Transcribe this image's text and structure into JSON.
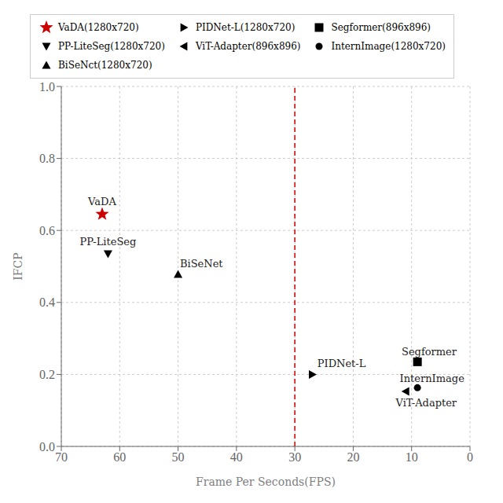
{
  "chart_data": {
    "type": "scatter",
    "title": "",
    "xlabel": "Frame Per Seconds(FPS)",
    "ylabel": "IFCP",
    "xlim": [
      70,
      0
    ],
    "ylim": [
      0.0,
      1.0
    ],
    "xticks": [
      70,
      60,
      50,
      40,
      30,
      20,
      10,
      0
    ],
    "yticks": [
      {
        "value": 0.0,
        "label": "0.0"
      },
      0.2,
      0.4,
      0.6,
      0.8,
      {
        "value": 1.0,
        "label": "1.0"
      }
    ],
    "grid": true,
    "legend": "top",
    "series": [
      {
        "name": "VaDA(1280x720)",
        "color": "#cc0000",
        "marker": "star",
        "x": [
          63
        ],
        "values": [
          0.645
        ]
      },
      {
        "name": "PIDNet-L(1280x720)",
        "color": "black",
        "marker": "triangle-right",
        "x": [
          27
        ],
        "values": [
          0.2
        ]
      },
      {
        "name": "Segformer(896x896)",
        "color": "black",
        "marker": "square",
        "x": [
          9
        ],
        "values": [
          0.235
        ]
      },
      {
        "name": "PP-LiteSeg(1280x720)",
        "color": "black",
        "marker": "triangle-down",
        "x": [
          62
        ],
        "values": [
          0.535
        ]
      },
      {
        "name": "ViT-Adapter(896x896)",
        "color": "black",
        "marker": "triangle-left",
        "x": [
          11
        ],
        "values": [
          0.153
        ]
      },
      {
        "name": "InternImage(1280x720)",
        "color": "black",
        "marker": "circle",
        "x": [
          9
        ],
        "values": [
          0.163
        ]
      },
      {
        "name": "BiSeNct(1280x720)",
        "color": "black",
        "marker": "triangle-up",
        "x": [
          50
        ],
        "values": [
          0.478
        ]
      }
    ],
    "annotations": [
      {
        "text": "VaDA",
        "x": 63,
        "y": 0.67
      },
      {
        "text": "PP-LiteSeg",
        "x": 62,
        "y": 0.558
      },
      {
        "text": "BiSeNet",
        "x": 46,
        "y": 0.498
      },
      {
        "text": "PIDNet-L",
        "x": 22,
        "y": 0.22
      },
      {
        "text": "Segformer",
        "x": 7,
        "y": 0.253
      },
      {
        "text": "InternImage",
        "x": 6.5,
        "y": 0.178
      },
      {
        "text": "ViT-Adapter",
        "x": 7.5,
        "y": 0.133
      }
    ],
    "vlines": [
      {
        "x": 30,
        "color": "#cc0000",
        "line_style": "dashed"
      }
    ]
  }
}
